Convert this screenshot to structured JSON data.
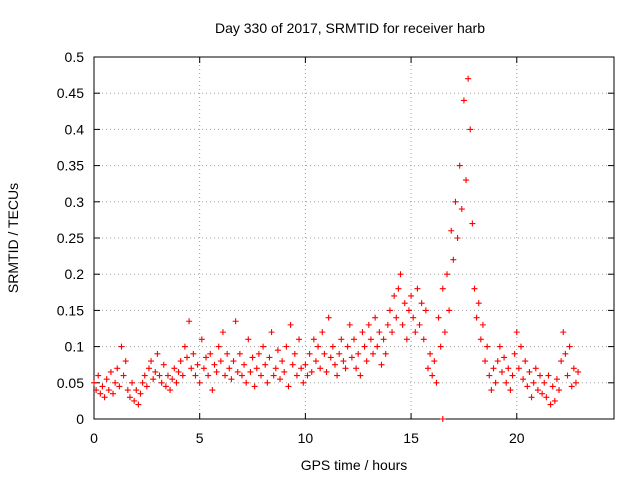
{
  "chart_data": {
    "type": "scatter",
    "title": "Day 330 of 2017, SRMTID for receiver harb",
    "xlabel": "GPS time / hours",
    "ylabel": "SRMTID / TECUs",
    "xlim": [
      0,
      24.6
    ],
    "ylim": [
      0,
      0.5
    ],
    "x_ticks": [
      0,
      5,
      10,
      15,
      20
    ],
    "x_tick_labels": [
      "0",
      "5",
      "10",
      "15",
      "20"
    ],
    "y_ticks": [
      0,
      0.05,
      0.1,
      0.15,
      0.2,
      0.25,
      0.3,
      0.35,
      0.4,
      0.45,
      0.5
    ],
    "y_tick_labels": [
      "0",
      "0.05",
      "0.1",
      "0.15",
      "0.2",
      "0.25",
      "0.3",
      "0.35",
      "0.4",
      "0.45",
      "0.5"
    ],
    "grid": true,
    "marker": "+",
    "series": [
      {
        "name": "SRMTID",
        "color": "#ff0000",
        "points": [
          [
            0.0,
            0.05
          ],
          [
            0.1,
            0.04
          ],
          [
            0.2,
            0.06
          ],
          [
            0.3,
            0.035
          ],
          [
            0.4,
            0.045
          ],
          [
            0.5,
            0.03
          ],
          [
            0.6,
            0.055
          ],
          [
            0.7,
            0.04
          ],
          [
            0.8,
            0.065
          ],
          [
            0.9,
            0.035
          ],
          [
            1.0,
            0.05
          ],
          [
            1.1,
            0.07
          ],
          [
            1.2,
            0.045
          ],
          [
            1.3,
            0.1
          ],
          [
            1.4,
            0.06
          ],
          [
            1.5,
            0.08
          ],
          [
            1.6,
            0.04
          ],
          [
            1.7,
            0.03
          ],
          [
            1.8,
            0.05
          ],
          [
            1.9,
            0.025
          ],
          [
            2.0,
            0.04
          ],
          [
            2.1,
            0.02
          ],
          [
            2.2,
            0.035
          ],
          [
            2.3,
            0.05
          ],
          [
            2.4,
            0.06
          ],
          [
            2.5,
            0.045
          ],
          [
            2.6,
            0.07
          ],
          [
            2.7,
            0.08
          ],
          [
            2.8,
            0.055
          ],
          [
            2.9,
            0.065
          ],
          [
            3.0,
            0.09
          ],
          [
            3.1,
            0.06
          ],
          [
            3.2,
            0.05
          ],
          [
            3.3,
            0.075
          ],
          [
            3.4,
            0.045
          ],
          [
            3.5,
            0.06
          ],
          [
            3.6,
            0.04
          ],
          [
            3.7,
            0.055
          ],
          [
            3.8,
            0.07
          ],
          [
            3.9,
            0.05
          ],
          [
            4.0,
            0.065
          ],
          [
            4.1,
            0.08
          ],
          [
            4.2,
            0.06
          ],
          [
            4.3,
            0.1
          ],
          [
            4.4,
            0.085
          ],
          [
            4.5,
            0.135
          ],
          [
            4.6,
            0.07
          ],
          [
            4.7,
            0.09
          ],
          [
            4.8,
            0.06
          ],
          [
            4.9,
            0.075
          ],
          [
            5.0,
            0.05
          ],
          [
            5.1,
            0.11
          ],
          [
            5.2,
            0.07
          ],
          [
            5.3,
            0.085
          ],
          [
            5.4,
            0.06
          ],
          [
            5.5,
            0.09
          ],
          [
            5.6,
            0.04
          ],
          [
            5.7,
            0.075
          ],
          [
            5.8,
            0.065
          ],
          [
            5.9,
            0.1
          ],
          [
            6.0,
            0.08
          ],
          [
            6.1,
            0.12
          ],
          [
            6.2,
            0.06
          ],
          [
            6.3,
            0.09
          ],
          [
            6.4,
            0.07
          ],
          [
            6.5,
            0.055
          ],
          [
            6.6,
            0.08
          ],
          [
            6.7,
            0.135
          ],
          [
            6.8,
            0.065
          ],
          [
            6.9,
            0.09
          ],
          [
            7.0,
            0.06
          ],
          [
            7.1,
            0.075
          ],
          [
            7.2,
            0.05
          ],
          [
            7.3,
            0.11
          ],
          [
            7.4,
            0.065
          ],
          [
            7.5,
            0.085
          ],
          [
            7.6,
            0.045
          ],
          [
            7.7,
            0.07
          ],
          [
            7.8,
            0.09
          ],
          [
            7.9,
            0.06
          ],
          [
            8.0,
            0.1
          ],
          [
            8.1,
            0.075
          ],
          [
            8.2,
            0.05
          ],
          [
            8.3,
            0.085
          ],
          [
            8.4,
            0.12
          ],
          [
            8.5,
            0.06
          ],
          [
            8.6,
            0.07
          ],
          [
            8.7,
            0.095
          ],
          [
            8.8,
            0.055
          ],
          [
            8.9,
            0.08
          ],
          [
            9.0,
            0.065
          ],
          [
            9.1,
            0.1
          ],
          [
            9.2,
            0.045
          ],
          [
            9.3,
            0.13
          ],
          [
            9.4,
            0.075
          ],
          [
            9.5,
            0.09
          ],
          [
            9.6,
            0.06
          ],
          [
            9.7,
            0.11
          ],
          [
            9.8,
            0.07
          ],
          [
            9.9,
            0.05
          ],
          [
            10.0,
            0.075
          ],
          [
            10.1,
            0.06
          ],
          [
            10.2,
            0.09
          ],
          [
            10.3,
            0.065
          ],
          [
            10.4,
            0.11
          ],
          [
            10.5,
            0.08
          ],
          [
            10.6,
            0.1
          ],
          [
            10.7,
            0.07
          ],
          [
            10.8,
            0.12
          ],
          [
            10.9,
            0.09
          ],
          [
            11.0,
            0.065
          ],
          [
            11.1,
            0.14
          ],
          [
            11.2,
            0.085
          ],
          [
            11.3,
            0.1
          ],
          [
            11.4,
            0.075
          ],
          [
            11.5,
            0.06
          ],
          [
            11.6,
            0.09
          ],
          [
            11.7,
            0.11
          ],
          [
            11.8,
            0.08
          ],
          [
            11.9,
            0.07
          ],
          [
            12.0,
            0.1
          ],
          [
            12.1,
            0.13
          ],
          [
            12.2,
            0.085
          ],
          [
            12.3,
            0.11
          ],
          [
            12.4,
            0.07
          ],
          [
            12.5,
            0.09
          ],
          [
            12.6,
            0.06
          ],
          [
            12.7,
            0.12
          ],
          [
            12.8,
            0.1
          ],
          [
            12.9,
            0.08
          ],
          [
            13.0,
            0.13
          ],
          [
            13.1,
            0.11
          ],
          [
            13.2,
            0.09
          ],
          [
            13.3,
            0.14
          ],
          [
            13.4,
            0.1
          ],
          [
            13.5,
            0.12
          ],
          [
            13.6,
            0.075
          ],
          [
            13.7,
            0.11
          ],
          [
            13.8,
            0.09
          ],
          [
            13.9,
            0.13
          ],
          [
            14.0,
            0.15
          ],
          [
            14.1,
            0.12
          ],
          [
            14.2,
            0.17
          ],
          [
            14.3,
            0.14
          ],
          [
            14.4,
            0.18
          ],
          [
            14.5,
            0.2
          ],
          [
            14.6,
            0.13
          ],
          [
            14.7,
            0.16
          ],
          [
            14.8,
            0.11
          ],
          [
            14.9,
            0.15
          ],
          [
            15.0,
            0.17
          ],
          [
            15.1,
            0.14
          ],
          [
            15.2,
            0.12
          ],
          [
            15.3,
            0.18
          ],
          [
            15.4,
            0.13
          ],
          [
            15.5,
            0.16
          ],
          [
            15.6,
            0.11
          ],
          [
            15.7,
            0.15
          ],
          [
            15.8,
            0.07
          ],
          [
            15.9,
            0.09
          ],
          [
            16.0,
            0.06
          ],
          [
            16.1,
            0.08
          ],
          [
            16.2,
            0.05
          ],
          [
            16.3,
            0.14
          ],
          [
            16.4,
            0.1
          ],
          [
            16.5,
            0.18
          ],
          [
            16.6,
            0.12
          ],
          [
            16.7,
            0.2
          ],
          [
            16.8,
            0.15
          ],
          [
            16.9,
            0.26
          ],
          [
            17.0,
            0.22
          ],
          [
            17.1,
            0.3
          ],
          [
            17.2,
            0.25
          ],
          [
            17.3,
            0.35
          ],
          [
            17.4,
            0.29
          ],
          [
            17.5,
            0.44
          ],
          [
            17.6,
            0.33
          ],
          [
            17.7,
            0.47
          ],
          [
            17.8,
            0.4
          ],
          [
            17.9,
            0.27
          ],
          [
            18.0,
            0.18
          ],
          [
            18.1,
            0.14
          ],
          [
            18.2,
            0.16
          ],
          [
            18.3,
            0.11
          ],
          [
            18.4,
            0.13
          ],
          [
            18.5,
            0.08
          ],
          [
            18.6,
            0.1
          ],
          [
            18.7,
            0.06
          ],
          [
            18.8,
            0.04
          ],
          [
            18.9,
            0.07
          ],
          [
            19.0,
            0.05
          ],
          [
            19.1,
            0.08
          ],
          [
            19.2,
            0.1
          ],
          [
            19.3,
            0.065
          ],
          [
            19.4,
            0.085
          ],
          [
            19.5,
            0.05
          ],
          [
            19.6,
            0.07
          ],
          [
            19.7,
            0.04
          ],
          [
            19.8,
            0.06
          ],
          [
            19.9,
            0.09
          ],
          [
            20.0,
            0.12
          ],
          [
            20.1,
            0.07
          ],
          [
            20.2,
            0.1
          ],
          [
            20.3,
            0.055
          ],
          [
            20.4,
            0.08
          ],
          [
            20.5,
            0.045
          ],
          [
            20.6,
            0.065
          ],
          [
            20.7,
            0.03
          ],
          [
            20.8,
            0.05
          ],
          [
            20.9,
            0.07
          ],
          [
            21.0,
            0.04
          ],
          [
            21.1,
            0.06
          ],
          [
            21.2,
            0.035
          ],
          [
            21.3,
            0.05
          ],
          [
            21.4,
            0.03
          ],
          [
            21.5,
            0.06
          ],
          [
            21.6,
            0.02
          ],
          [
            21.7,
            0.045
          ],
          [
            21.8,
            0.025
          ],
          [
            21.9,
            0.055
          ],
          [
            22.0,
            0.04
          ],
          [
            22.1,
            0.08
          ],
          [
            22.2,
            0.12
          ],
          [
            22.3,
            0.09
          ],
          [
            22.4,
            0.06
          ],
          [
            22.5,
            0.1
          ],
          [
            22.6,
            0.045
          ],
          [
            22.7,
            0.07
          ],
          [
            22.8,
            0.05
          ],
          [
            22.9,
            0.065
          ],
          [
            16.5,
            0.0
          ]
        ]
      }
    ]
  }
}
